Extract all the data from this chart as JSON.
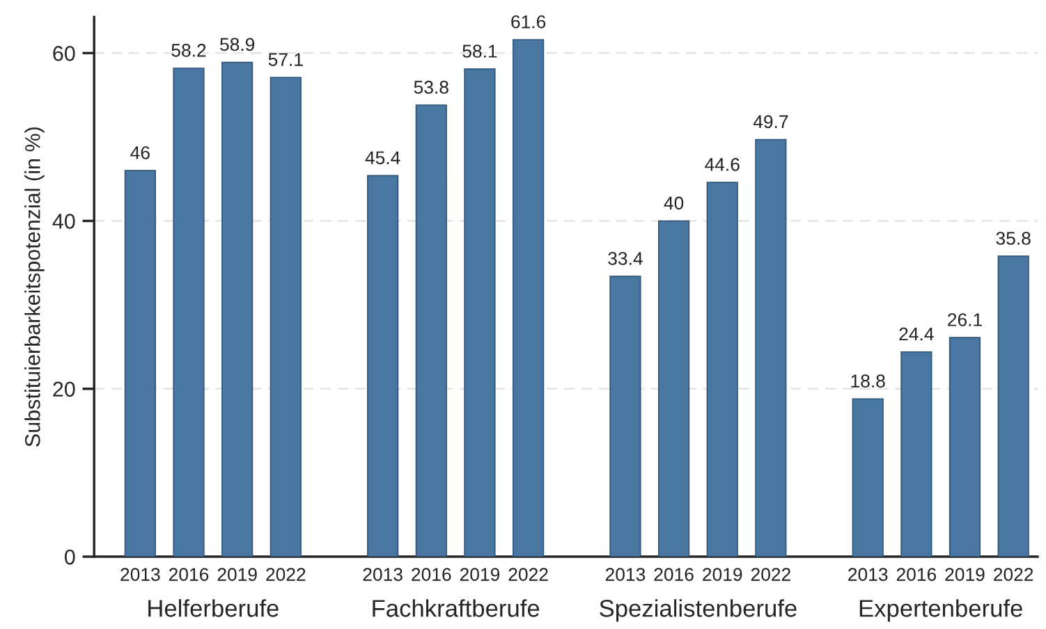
{
  "chart_data": {
    "type": "bar",
    "categories": [
      "Helferberufe",
      "Fachkraftberufe",
      "Spezialistenberufe",
      "Expertenberufe"
    ],
    "series": [
      {
        "name": "2013",
        "color": "#4a77a1",
        "values": [
          46,
          45.4,
          33.4,
          18.8
        ]
      },
      {
        "name": "2016",
        "color": "#4a77a1",
        "values": [
          58.2,
          53.8,
          40,
          24.4
        ]
      },
      {
        "name": "2019",
        "color": "#4a77a1",
        "values": [
          58.9,
          58.1,
          44.6,
          26.1
        ]
      },
      {
        "name": "2022",
        "color": "#4a77a1",
        "values": [
          57.1,
          61.6,
          49.7,
          35.8
        ]
      }
    ],
    "ylabel": "Substituierbarkeitspotenzial (in %)",
    "ylim": [
      0,
      64.3
    ],
    "yticks": [
      0,
      20,
      40,
      60
    ],
    "grid": "y",
    "legend": false,
    "data_labels": true
  }
}
